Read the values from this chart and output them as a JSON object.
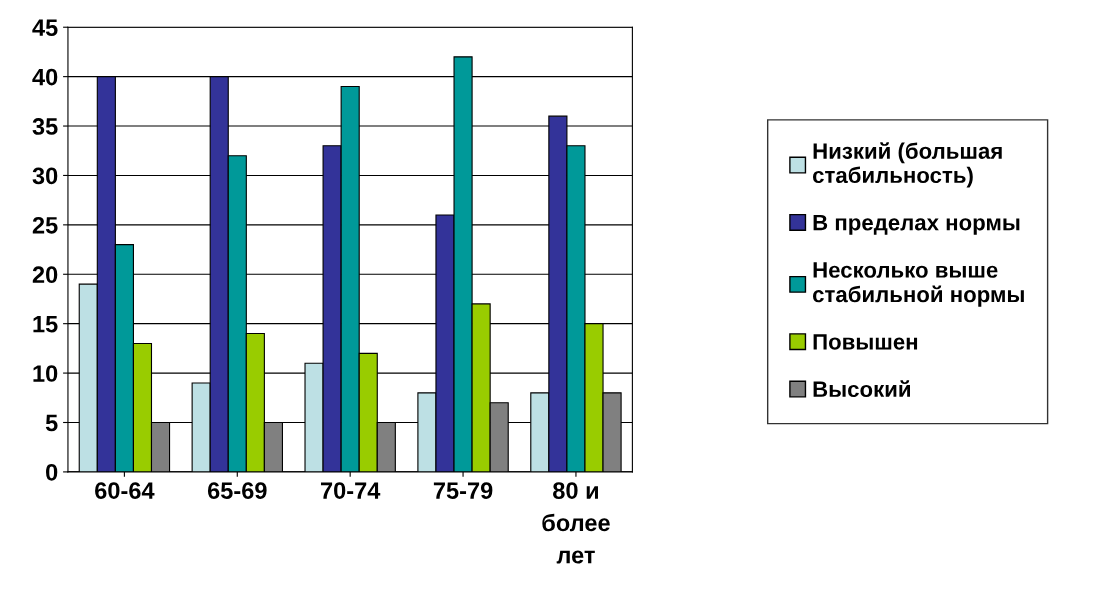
{
  "chart_data": {
    "type": "bar",
    "categories": [
      "60-64",
      "65-69",
      "70-74",
      "75-79",
      "80 и\nболее\nлет"
    ],
    "series": [
      {
        "name": "Низкий (большая\nстабильность)",
        "color": "#bde0e4",
        "values": [
          19,
          9,
          11,
          8,
          8
        ]
      },
      {
        "name": "В пределах нормы",
        "color": "#333399",
        "values": [
          40,
          40,
          33,
          26,
          36
        ]
      },
      {
        "name": "Несколько выше\nстабильной нормы",
        "color": "#009999",
        "values": [
          23,
          32,
          39,
          42,
          33
        ]
      },
      {
        "name": "Повышен",
        "color": "#99cc00",
        "values": [
          13,
          14,
          12,
          17,
          15
        ]
      },
      {
        "name": "Высокий",
        "color": "#808080",
        "values": [
          5,
          5,
          5,
          7,
          8
        ]
      }
    ],
    "ylim": [
      0,
      45
    ],
    "yticks": [
      0,
      5,
      10,
      15,
      20,
      25,
      30,
      35,
      40,
      45
    ],
    "grid": "y",
    "legend": "right"
  }
}
